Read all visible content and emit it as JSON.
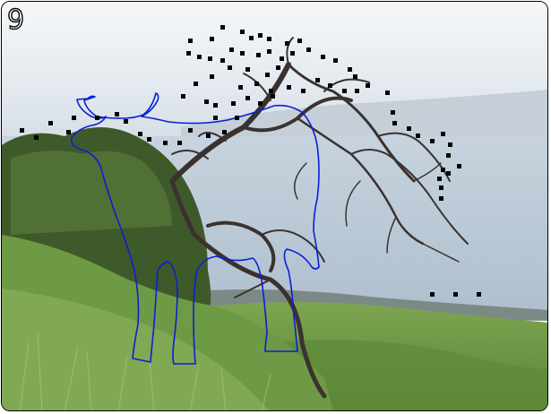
{
  "panel": {
    "number_label": "9",
    "description_colors": {
      "sky": "#e9eef3",
      "sea": "#b8c9d8",
      "grass": "#6f9a45",
      "outline": "#0a1fd6",
      "dots": "#000000"
    }
  }
}
